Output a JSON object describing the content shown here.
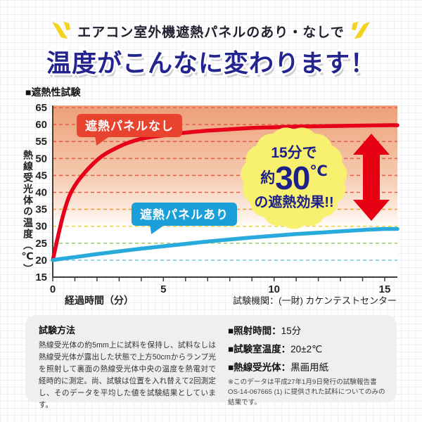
{
  "header": {
    "subtitle": "エアコン室外機遮熱パネルのあり・なしで",
    "title": "温度がこんなに変わります！"
  },
  "section_label": "■遮熱性試験",
  "chart_data": {
    "type": "line",
    "xlabel": "経過時間（分）",
    "ylabel": "熱線受光体の温度（℃）",
    "xlim": [
      0,
      15
    ],
    "ylim": [
      15,
      65
    ],
    "xtick_labels": [
      0,
      5,
      10,
      15
    ],
    "xticks_minor_every": 1,
    "yticks": [
      15,
      20,
      25,
      30,
      35,
      40,
      45,
      50,
      55,
      60,
      65
    ],
    "grid": true,
    "legend": "inline-callouts",
    "x": [
      0,
      0.5,
      1,
      2,
      3,
      4,
      5,
      6,
      7,
      8,
      9,
      10,
      11,
      12,
      13,
      14,
      15
    ],
    "series": [
      {
        "name": "遮熱パネルなし",
        "color": "#e60019",
        "values": [
          20,
          34,
          42,
          49.5,
          53.5,
          55.8,
          56.8,
          57.6,
          58.2,
          58.6,
          59,
          59.2,
          59.4,
          59.5,
          59.6,
          59.7,
          59.8
        ]
      },
      {
        "name": "遮熱パネルあり",
        "color": "#29aadd",
        "values": [
          20,
          20.5,
          20.9,
          21.8,
          22.6,
          23.4,
          24.1,
          24.8,
          25.5,
          26.1,
          26.7,
          27.2,
          27.7,
          28.1,
          28.5,
          28.9,
          29.2
        ]
      }
    ],
    "gridline_colors": {
      "20": "#7fc9e8",
      "25": "#a2cf71",
      "30": "#ecd44e",
      "35": "#f09f3c",
      "default": "#e4604a"
    }
  },
  "annotations": {
    "label_no_panel": "遮熱パネルなし",
    "label_with_panel": "遮熱パネルあり",
    "badge_line1": "15分で",
    "badge_prefix": "約",
    "badge_value": "30",
    "badge_unit": "℃",
    "badge_line3": "の遮熱効果!!"
  },
  "test_org": "試験機関：(一財) カケンテストセンター",
  "info_box": {
    "method_title": "試験方法",
    "method_body": "熱線受光体の約5mm上に試料を保持し、試料なしは熱線受光体が露出した状態で上方50cmからランプ光を照射して裏面の熱線受光体中央の温度を熱電対で経時的に測定。尚、試験は位置を入れ替えて2回測定し、そのデータを平均した値を試験結果としています。",
    "specs": [
      {
        "label": "■照射時間：",
        "value": "15分"
      },
      {
        "label": "■試験室温度：",
        "value": "20±2℃"
      },
      {
        "label": "■熱線受光体：",
        "value": "黒画用紙"
      }
    ],
    "footnote": "※このデータは平成27年1月9日発行の試験報告書OS-14-067665 (1) に提供された試料についてのみの結果です。"
  },
  "colors": {
    "title": "#23248f",
    "badge_bg": "#f8f170",
    "badge_text": "#1d2088",
    "arrow": "#e60012",
    "callout_red_bg": "#e8432f",
    "callout_blue_bg": "#1a9fd9",
    "plot_gradient_top": "#eca077",
    "sparkle": "#f2d321"
  }
}
